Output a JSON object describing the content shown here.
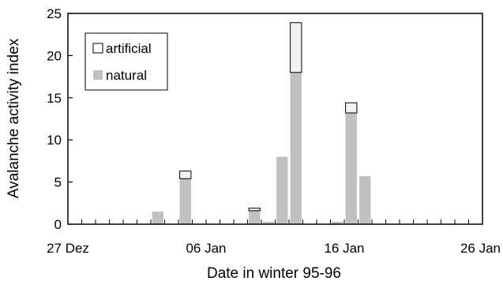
{
  "chart_data": {
    "type": "bar",
    "stacked": true,
    "title": "",
    "xlabel": "Date in winter 95-96",
    "ylabel": "Avalanche activity index",
    "ylim": [
      0,
      25
    ],
    "yticks": [
      0,
      5,
      10,
      15,
      20,
      25
    ],
    "xlim": [
      "1995-12-27",
      "1996-01-26"
    ],
    "xticks": [
      {
        "date": "1995-12-27",
        "label": "27 Dez"
      },
      {
        "date": "1996-01-06",
        "label": "06 Jan"
      },
      {
        "date": "1996-01-16",
        "label": "16 Jan"
      },
      {
        "date": "1996-01-26",
        "label": "26 Jan"
      }
    ],
    "legend_position": "top-left",
    "series": [
      {
        "name": "natural",
        "color": "#c0c0c0",
        "x": [
          "1996-01-02",
          "1996-01-03",
          "1996-01-04",
          "1996-01-05",
          "1996-01-06",
          "1996-01-07",
          "1996-01-08",
          "1996-01-09",
          "1996-01-10",
          "1996-01-11",
          "1996-01-12",
          "1996-01-13",
          "1996-01-14",
          "1996-01-15",
          "1996-01-16",
          "1996-01-17"
        ],
        "values": [
          1.5,
          0.0,
          5.4,
          0.0,
          0.0,
          0.0,
          0.0,
          1.6,
          0.3,
          8.0,
          18.0,
          0.0,
          0.0,
          0.3,
          13.2,
          5.7
        ]
      },
      {
        "name": "artificial",
        "color": "#f2f2f2",
        "x": [
          "1996-01-02",
          "1996-01-03",
          "1996-01-04",
          "1996-01-05",
          "1996-01-06",
          "1996-01-07",
          "1996-01-08",
          "1996-01-09",
          "1996-01-10",
          "1996-01-11",
          "1996-01-12",
          "1996-01-13",
          "1996-01-14",
          "1996-01-15",
          "1996-01-16",
          "1996-01-17"
        ],
        "values": [
          0.0,
          0.0,
          0.9,
          0.0,
          0.0,
          0.0,
          0.0,
          0.3,
          0.0,
          0.0,
          5.9,
          0.0,
          0.0,
          0.0,
          1.2,
          0.0
        ]
      }
    ]
  }
}
